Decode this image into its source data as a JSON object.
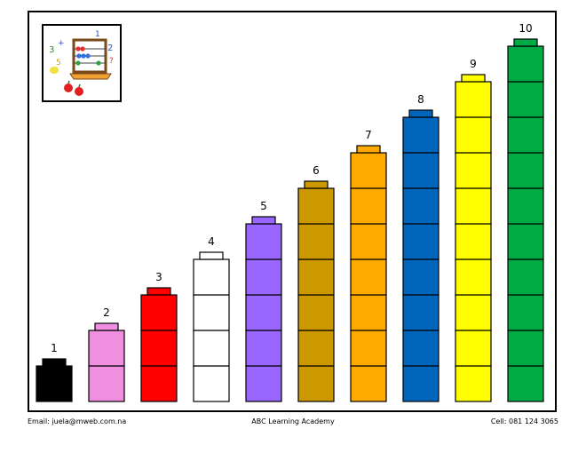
{
  "footer": {
    "email": "Email: juela@mweb.com.na",
    "center": "ABC Learning Academy",
    "phone": "Cell: 081 124 3065"
  },
  "logo": {
    "icon": "abacus-clipart-icon"
  },
  "towers": [
    {
      "label": "1",
      "count": 1,
      "color": "#000000"
    },
    {
      "label": "2",
      "count": 2,
      "color": "#f08ee0"
    },
    {
      "label": "3",
      "count": 3,
      "color": "#ff0000"
    },
    {
      "label": "4",
      "count": 4,
      "color": "#ffffff"
    },
    {
      "label": "5",
      "count": 5,
      "color": "#9966ff"
    },
    {
      "label": "6",
      "count": 6,
      "color": "#cc9900"
    },
    {
      "label": "7",
      "count": 7,
      "color": "#ffaa00"
    },
    {
      "label": "8",
      "count": 8,
      "color": "#0066bb"
    },
    {
      "label": "9",
      "count": 9,
      "color": "#ffff00"
    },
    {
      "label": "10",
      "count": 10,
      "color": "#00aa44"
    }
  ]
}
